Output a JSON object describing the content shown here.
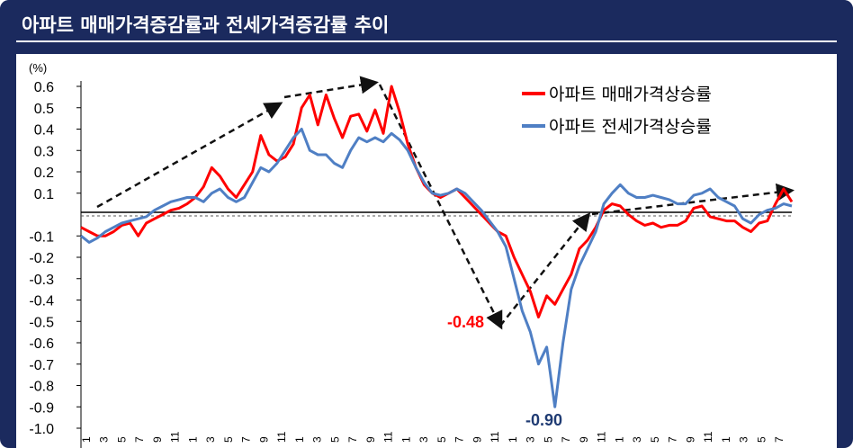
{
  "title": "아파트 매매가격증감률과 전세가격증감률 추이",
  "chart_data": {
    "type": "line",
    "y_unit": "(%)",
    "ylim": [
      -1.0,
      0.6
    ],
    "y_ticks": [
      "0.6",
      "0.5",
      "0.4",
      "0.3",
      "0.2",
      "0.1",
      "-0.1",
      "-0.2",
      "-0.3",
      "-0.4",
      "-0.5",
      "-0.6",
      "-0.7",
      "-0.8",
      "-0.9",
      "-1.0"
    ],
    "x_tick_labels": [
      "1",
      "3",
      "5",
      "7",
      "9",
      "11",
      "1",
      "3",
      "5",
      "7",
      "9",
      "11",
      "1",
      "3",
      "5",
      "7",
      "9",
      "11",
      "1",
      "3",
      "5",
      "7",
      "9",
      "11",
      "1",
      "3",
      "5",
      "7",
      "9",
      "11",
      "1",
      "3",
      "5",
      "7",
      "9",
      "11",
      "1",
      "3",
      "5",
      "7"
    ],
    "grid": false,
    "legend_position": "top-right",
    "series": [
      {
        "name": "아파트 매매가격상승률",
        "color": "#ff0000",
        "values": [
          -0.06,
          -0.08,
          -0.1,
          -0.1,
          -0.08,
          -0.05,
          -0.04,
          -0.1,
          -0.04,
          -0.02,
          0.0,
          0.02,
          0.03,
          0.05,
          0.08,
          0.13,
          0.22,
          0.18,
          0.12,
          0.08,
          0.14,
          0.2,
          0.37,
          0.28,
          0.25,
          0.27,
          0.33,
          0.5,
          0.56,
          0.42,
          0.56,
          0.45,
          0.36,
          0.46,
          0.47,
          0.39,
          0.49,
          0.38,
          0.6,
          0.48,
          0.33,
          0.22,
          0.14,
          0.1,
          0.08,
          0.1,
          0.12,
          0.08,
          0.04,
          0.0,
          -0.04,
          -0.08,
          -0.1,
          -0.2,
          -0.28,
          -0.36,
          -0.48,
          -0.38,
          -0.42,
          -0.35,
          -0.28,
          -0.16,
          -0.12,
          -0.06,
          0.02,
          0.05,
          0.04,
          0.0,
          -0.03,
          -0.05,
          -0.04,
          -0.06,
          -0.05,
          -0.05,
          -0.03,
          0.03,
          0.04,
          -0.01,
          -0.02,
          -0.03,
          -0.03,
          -0.06,
          -0.08,
          -0.04,
          -0.03,
          0.05,
          0.12,
          0.06
        ]
      },
      {
        "name": "아파트 전세가격상승률",
        "color": "#4f7fc4",
        "values": [
          -0.1,
          -0.13,
          -0.11,
          -0.08,
          -0.06,
          -0.04,
          -0.03,
          -0.02,
          -0.01,
          0.02,
          0.04,
          0.06,
          0.07,
          0.08,
          0.08,
          0.06,
          0.1,
          0.12,
          0.08,
          0.06,
          0.08,
          0.15,
          0.22,
          0.2,
          0.24,
          0.3,
          0.36,
          0.4,
          0.3,
          0.28,
          0.28,
          0.24,
          0.22,
          0.3,
          0.36,
          0.34,
          0.36,
          0.34,
          0.38,
          0.35,
          0.3,
          0.22,
          0.15,
          0.1,
          0.09,
          0.1,
          0.12,
          0.1,
          0.06,
          0.02,
          -0.03,
          -0.08,
          -0.15,
          -0.3,
          -0.45,
          -0.55,
          -0.7,
          -0.62,
          -0.9,
          -0.6,
          -0.35,
          -0.24,
          -0.16,
          -0.08,
          0.05,
          0.1,
          0.14,
          0.1,
          0.08,
          0.08,
          0.09,
          0.08,
          0.07,
          0.05,
          0.05,
          0.09,
          0.1,
          0.12,
          0.08,
          0.06,
          0.04,
          -0.02,
          -0.04,
          0.0,
          0.02,
          0.03,
          0.05,
          0.04
        ]
      }
    ],
    "annotations": [
      {
        "text": "-0.48",
        "color": "#ff0000",
        "value": -0.48
      },
      {
        "text": "-0.90",
        "color": "#1f3b73",
        "value": -0.9
      }
    ]
  }
}
